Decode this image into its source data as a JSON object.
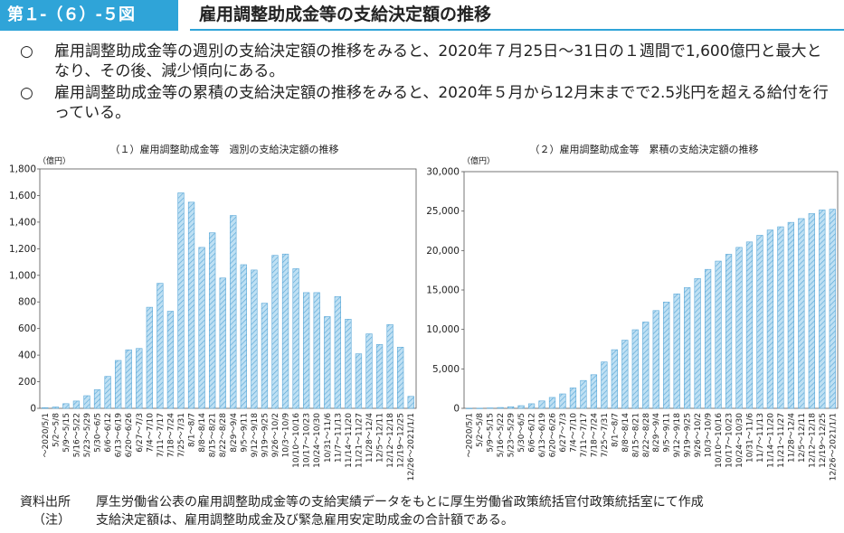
{
  "header": {
    "figure_number": "第１-（６）-５図",
    "title": "雇用調整助成金等の支給決定額の推移"
  },
  "summary": [
    {
      "mark": "○",
      "text": "雇用調整助成金等の週別の支給決定額の推移をみると、2020年７月25日～31日の１週間で1,600億円と最大となり、その後、減少傾向にある。"
    },
    {
      "mark": "○",
      "text": "雇用調整助成金等の累積の支給決定額の推移をみると、2020年５月から12月末までで2.5兆円を超える給付を行っている。"
    }
  ],
  "colors": {
    "accent": "#2fa4d8",
    "bar_fill": "#bfe0f3",
    "bar_stroke": "#5aa8d8"
  },
  "chart_data": [
    {
      "type": "bar",
      "title": "（１）雇用調整助成金等　週別の支給決定額の推移",
      "unit": "（億円）",
      "ylim": [
        0,
        1800
      ],
      "yticks": [
        0,
        200,
        400,
        600,
        800,
        1000,
        1200,
        1400,
        1600,
        1800
      ],
      "ytick_labels": [
        "0",
        "200",
        "400",
        "600",
        "800",
        "1,000",
        "1,200",
        "1,400",
        "1,600",
        "1,800"
      ],
      "grid": false,
      "categories": [
        "～2020/5/1",
        "5/2～5/8",
        "5/9～5/15",
        "5/16～5/22",
        "5/23～5/29",
        "5/30～6/5",
        "6/6～6/12",
        "6/13～6/19",
        "6/20～6/26",
        "6/27～7/3",
        "7/4～7/10",
        "7/11～7/17",
        "7/18～7/24",
        "7/25～7/31",
        "8/1～8/7",
        "8/8～8/14",
        "8/15～8/21",
        "8/22～8/28",
        "8/29～9/4",
        "9/5～9/11",
        "9/12～9/18",
        "9/19～9/25",
        "9/26～10/2",
        "10/3～10/9",
        "10/10～10/16",
        "10/17～10/23",
        "10/24～10/30",
        "10/31～11/6",
        "11/7～11/13",
        "11/14～11/20",
        "11/21～11/27",
        "11/28～12/4",
        "12/5～12/11",
        "12/12～12/18",
        "12/19～12/25",
        "12/26～2021/1/1"
      ],
      "values": [
        5,
        10,
        35,
        55,
        95,
        140,
        240,
        360,
        440,
        450,
        760,
        940,
        730,
        1620,
        1550,
        1210,
        1320,
        980,
        1450,
        1080,
        1040,
        790,
        1150,
        1160,
        1050,
        870,
        870,
        690,
        840,
        670,
        410,
        560,
        480,
        630,
        460,
        90
      ]
    },
    {
      "type": "bar",
      "title": "（２）雇用調整助成金等　累積の支給決定額の推移",
      "unit": "（億円）",
      "ylim": [
        0,
        30000
      ],
      "yticks": [
        0,
        5000,
        10000,
        15000,
        20000,
        25000,
        30000
      ],
      "ytick_labels": [
        "0",
        "5,000",
        "10,000",
        "15,000",
        "20,000",
        "25,000",
        "30,000"
      ],
      "grid": false,
      "categories": [
        "～2020/5/1",
        "5/2～5/8",
        "5/9～5/15",
        "5/16～5/22",
        "5/23～5/29",
        "5/30～6/5",
        "6/6～6/12",
        "6/13～6/19",
        "6/20～6/26",
        "6/27～7/3",
        "7/4～7/10",
        "7/11～7/17",
        "7/18～7/24",
        "7/25～7/31",
        "8/1～8/7",
        "8/8～8/14",
        "8/15～8/21",
        "8/22～8/28",
        "8/29～9/4",
        "9/5～9/11",
        "9/12～9/18",
        "9/19～9/25",
        "9/26～10/2",
        "10/3～10/9",
        "10/10～10/16",
        "10/17～10/23",
        "10/24～10/30",
        "10/31～11/6",
        "11/7～11/13",
        "11/14～11/20",
        "11/21～11/27",
        "11/28～12/4",
        "12/5～12/11",
        "12/12～12/18",
        "12/19～12/25",
        "12/26～2021/1/1"
      ],
      "values": [
        5,
        15,
        50,
        105,
        200,
        340,
        580,
        940,
        1380,
        1830,
        2590,
        3530,
        4260,
        5880,
        7430,
        8640,
        9960,
        10940,
        12390,
        13470,
        14510,
        15300,
        16450,
        17610,
        18660,
        19530,
        20400,
        21090,
        21930,
        22600,
        23010,
        23570,
        24050,
        24680,
        25140,
        25230
      ]
    }
  ],
  "footer": {
    "source_label": "資料出所",
    "source_text": "厚生労働省公表の雇用調整助成金等の支給実績データをもとに厚生労働省政策統括官付政策統括室にて作成",
    "note_label": "（注）",
    "note_text": "支給決定額は、雇用調整助成金及び緊急雇用安定助成金の合計額である。"
  }
}
